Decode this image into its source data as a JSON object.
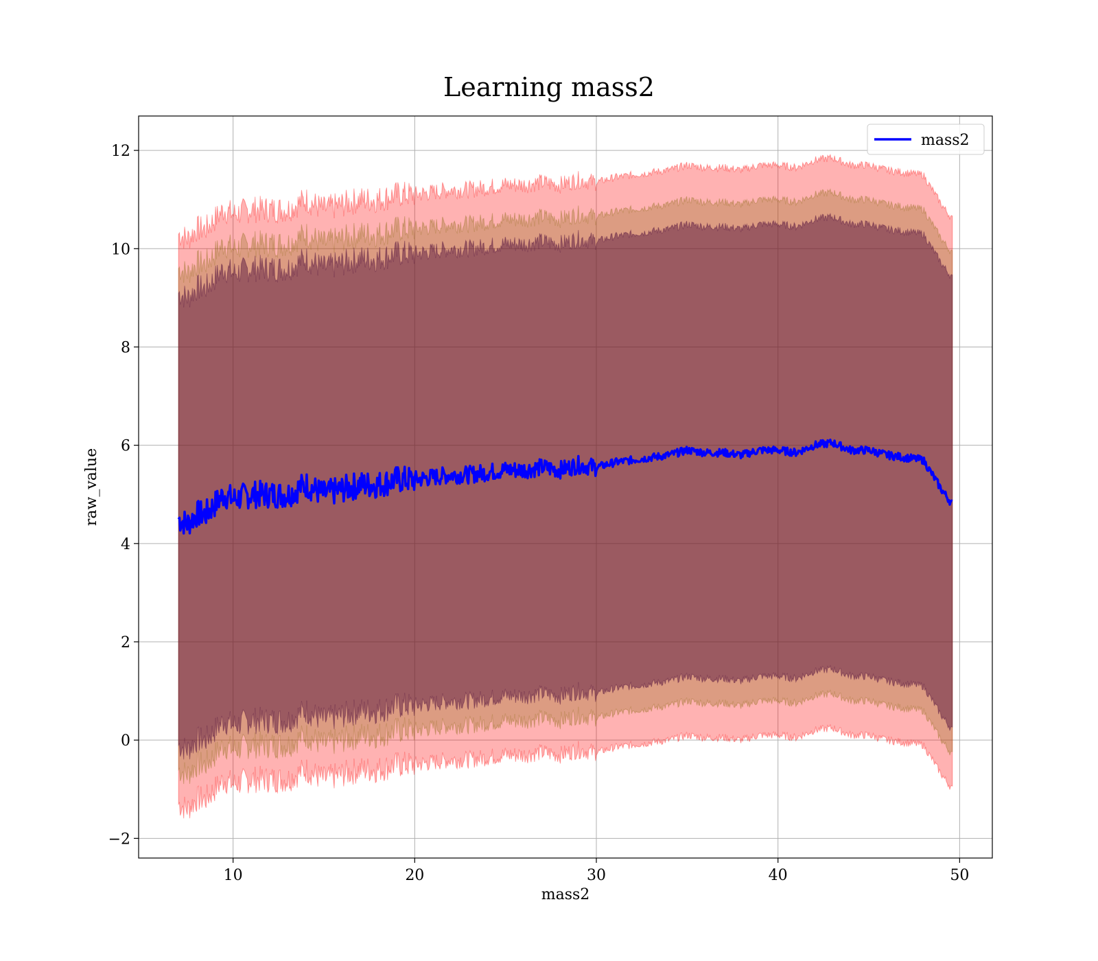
{
  "chart_data": {
    "type": "line",
    "title": "Learning mass2",
    "xlabel": "mass2",
    "ylabel": "raw_value",
    "xlim": [
      4.8,
      51.8
    ],
    "ylim": [
      -2.4,
      12.7
    ],
    "grid": true,
    "legend_position": "top-right",
    "x_ticks": [
      10,
      20,
      30,
      40,
      50
    ],
    "x_tick_labels": [
      "10",
      "20",
      "30",
      "40",
      "50"
    ],
    "y_ticks": [
      -2,
      0,
      2,
      4,
      6,
      8,
      10,
      12
    ],
    "y_tick_labels": [
      "−2",
      "0",
      "2",
      "4",
      "6",
      "8",
      "10",
      "12"
    ],
    "colors": {
      "line": "#0000ff",
      "band_outer": "#ff0000",
      "band_middle": "#8b6914",
      "band_inner": "#4b0b3a"
    },
    "band_offsets": {
      "inner_plus_minus": 4.6,
      "middle_plus_minus": 5.1,
      "outer_plus_minus": 5.8
    },
    "series": [
      {
        "name": "mass2",
        "x": [
          7.0,
          7.5,
          8.0,
          8.5,
          9.0,
          9.5,
          10.0,
          11.0,
          12.0,
          13.0,
          14.0,
          15.0,
          16.0,
          17.0,
          18.0,
          19.0,
          20.0,
          21.0,
          22.0,
          23.0,
          24.0,
          25.0,
          26.0,
          27.0,
          28.0,
          29.0,
          30.0,
          31.0,
          32.0,
          33.0,
          34.0,
          35.0,
          36.0,
          37.0,
          38.0,
          39.0,
          40.0,
          41.0,
          42.0,
          43.0,
          44.0,
          45.0,
          46.0,
          47.0,
          48.0,
          48.5,
          49.0,
          49.6
        ],
        "y": [
          4.5,
          4.4,
          4.6,
          4.6,
          4.8,
          5.0,
          4.9,
          5.0,
          5.0,
          5.0,
          5.2,
          5.0,
          5.1,
          5.2,
          5.2,
          5.3,
          5.3,
          5.35,
          5.4,
          5.4,
          5.45,
          5.5,
          5.5,
          5.55,
          5.5,
          5.6,
          5.55,
          5.65,
          5.7,
          5.75,
          5.8,
          5.9,
          5.85,
          5.85,
          5.8,
          5.9,
          5.9,
          5.85,
          6.0,
          6.05,
          5.9,
          5.9,
          5.8,
          5.75,
          5.7,
          5.4,
          5.1,
          4.8
        ]
      }
    ]
  }
}
